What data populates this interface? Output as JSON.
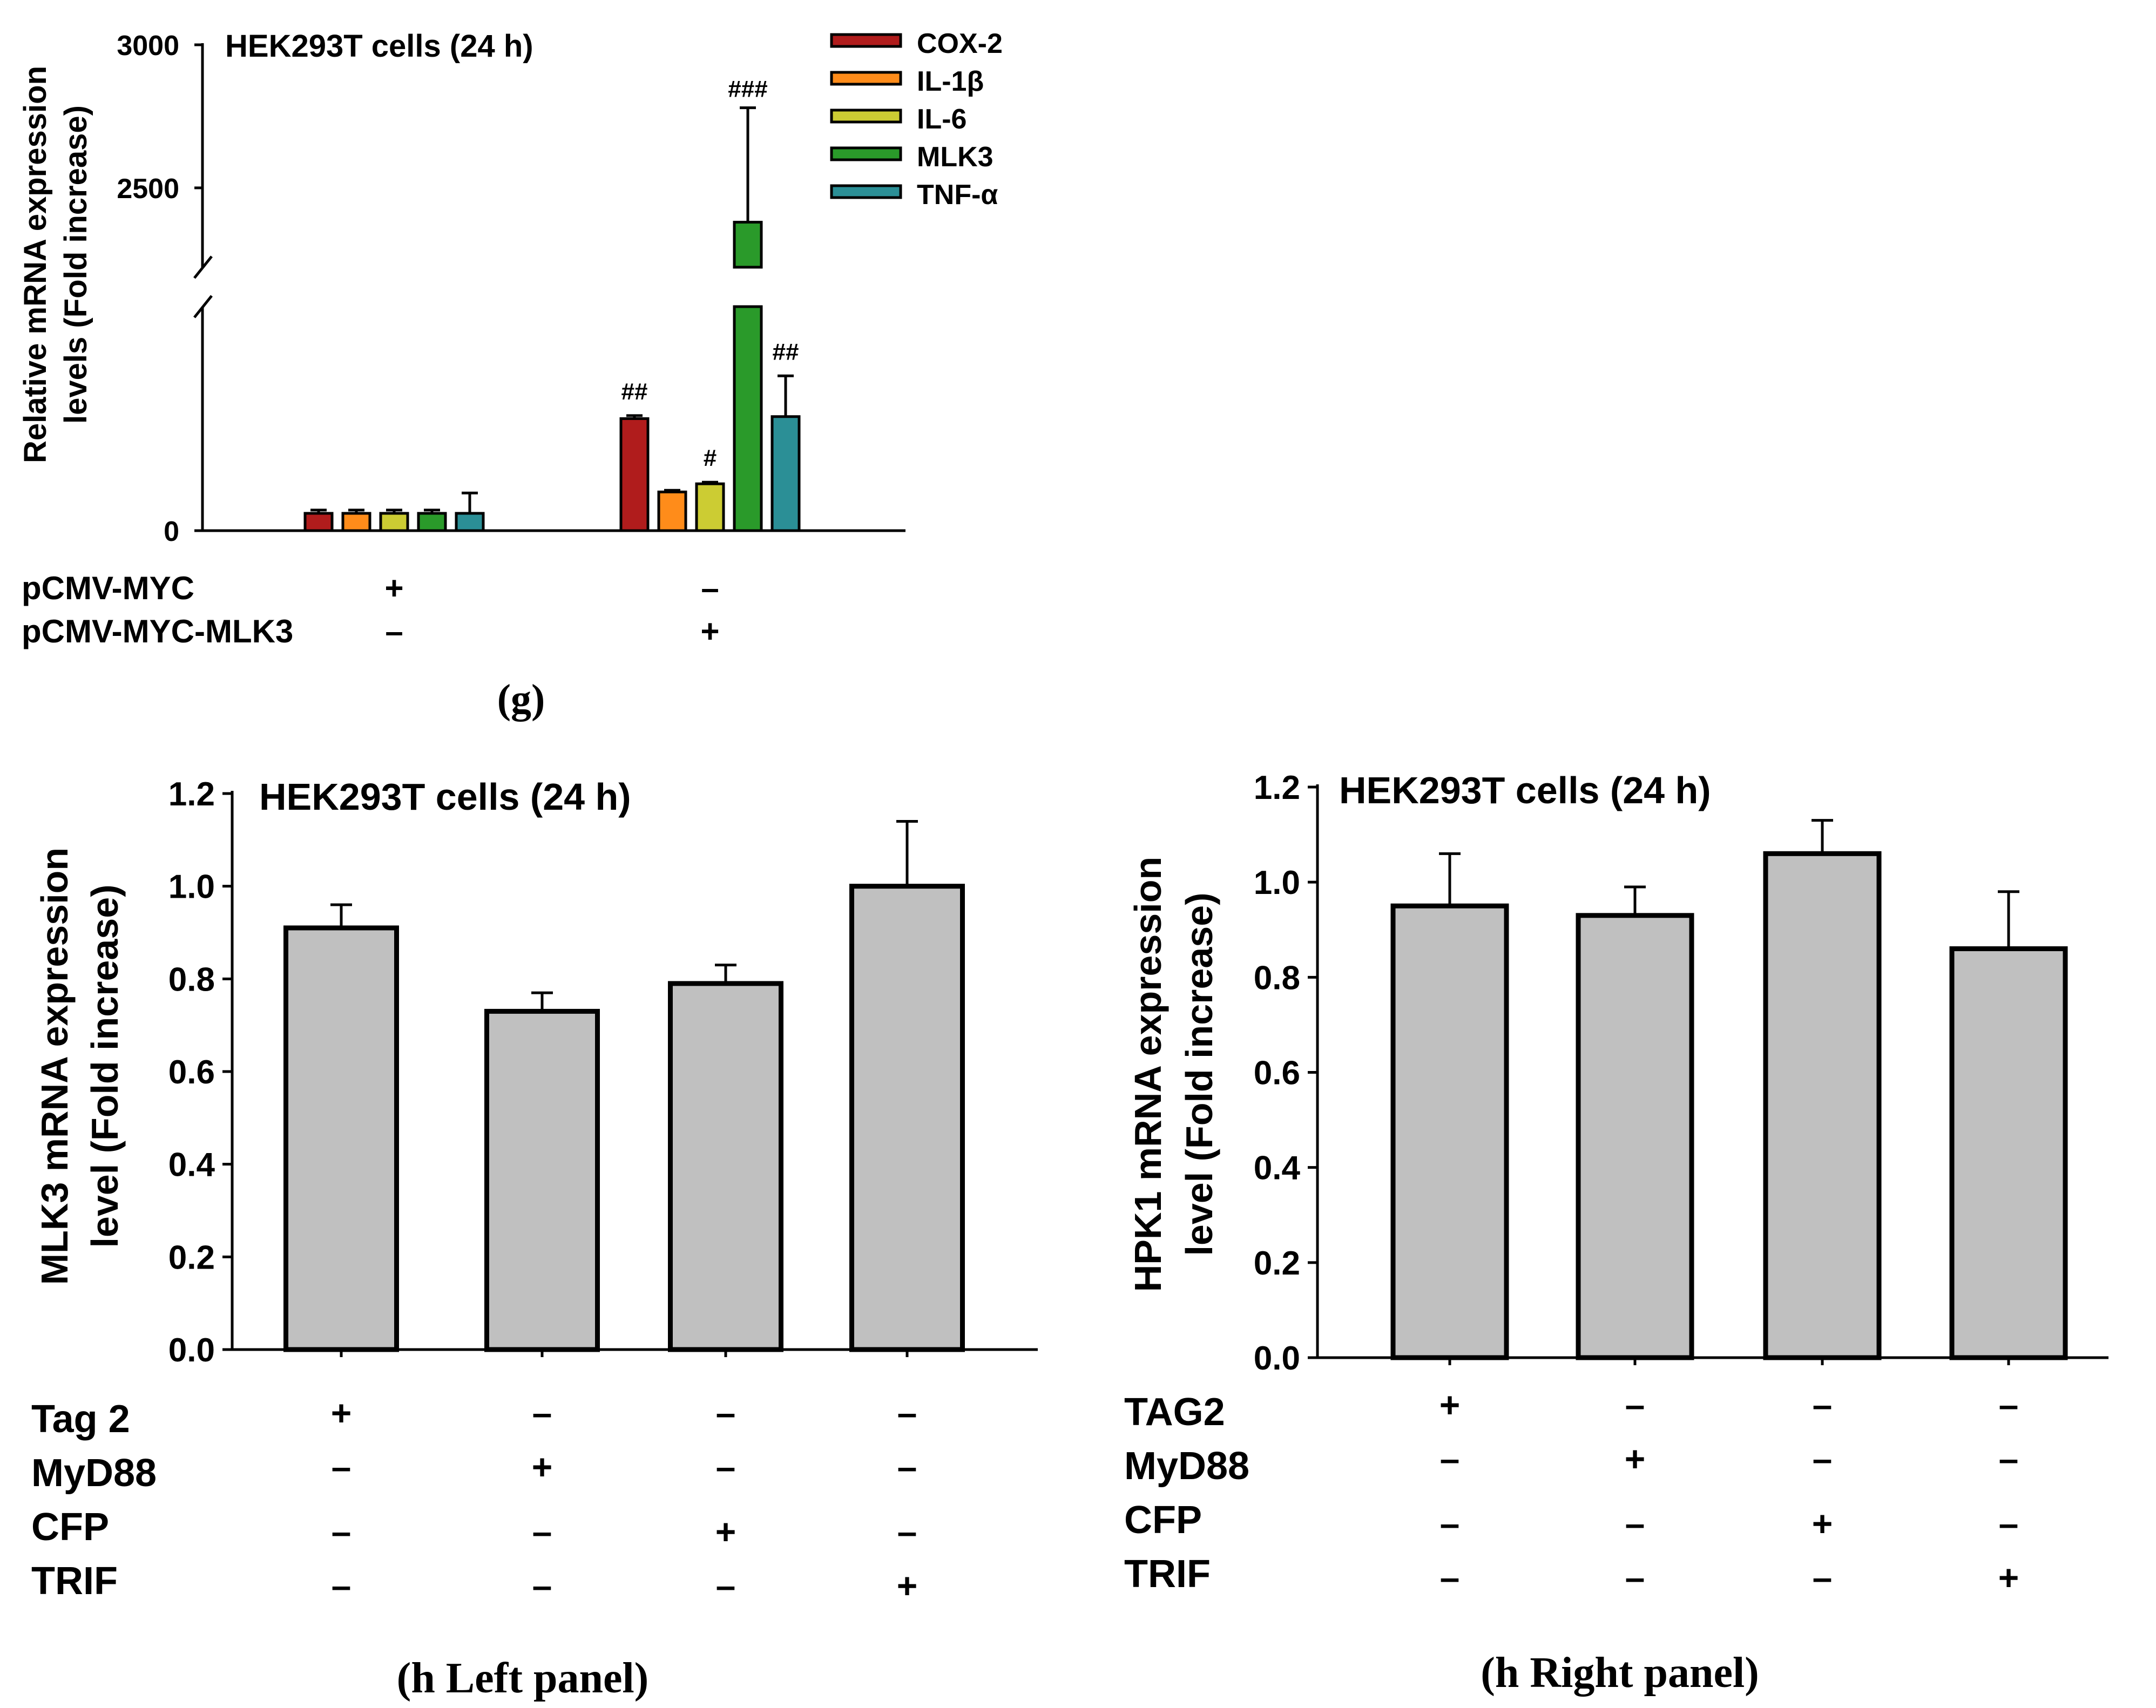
{
  "panel_g": {
    "caption": "(g)",
    "chart_data": {
      "type": "bar",
      "title": "HEK293T cells (24 h)",
      "ylabel_line1": "Relative mRNA expression",
      "ylabel_line2": "levels (Fold increase)",
      "axis_break": true,
      "yticks": [
        "0",
        "2500",
        "3000"
      ],
      "legend_position": "top-right",
      "colors": [
        "#b01c1c",
        "#ff8c1a",
        "#cccc33",
        "#2a9a2a",
        "#2b8f96"
      ],
      "series": [
        {
          "name": "COX-2",
          "values": [
            1,
            550
          ],
          "errors": [
            0,
            15
          ],
          "annotation": [
            "",
            "##"
          ]
        },
        {
          "name": "IL-1β",
          "values": [
            1,
            190
          ],
          "errors": [
            0,
            8
          ],
          "annotation": [
            "",
            ""
          ]
        },
        {
          "name": "IL-6",
          "values": [
            1,
            230
          ],
          "errors": [
            0,
            8
          ],
          "annotation": [
            "",
            "#"
          ]
        },
        {
          "name": "MLK3",
          "values": [
            1,
            2380
          ],
          "errors": [
            0,
            400
          ],
          "annotation": [
            "",
            "###"
          ]
        },
        {
          "name": "TNF-α",
          "values": [
            1,
            560
          ],
          "errors": [
            0,
            200
          ],
          "annotation": [
            "",
            "##"
          ]
        }
      ],
      "conditions": [
        {
          "label": "pCMV-MYC",
          "marks": [
            "+",
            "–"
          ]
        },
        {
          "label": "pCMV-MYC-MLK3",
          "marks": [
            "–",
            "+"
          ]
        }
      ]
    }
  },
  "panel_h_left": {
    "caption": "(h Left panel)",
    "chart_data": {
      "type": "bar",
      "title": "HEK293T cells (24 h)",
      "ylabel_line1": "MLK3 mRNA expression",
      "ylabel_line2": "level  (Fold increase)",
      "ylim": [
        0,
        1.2
      ],
      "yticks": [
        "0.0",
        "0.2",
        "0.4",
        "0.6",
        "0.8",
        "1.0",
        "1.2"
      ],
      "bar_color": "#c0c0c0",
      "values": [
        0.91,
        0.73,
        0.79,
        1.0
      ],
      "errors": [
        0.05,
        0.04,
        0.04,
        0.14
      ],
      "conditions": [
        {
          "label": "Tag 2",
          "marks": [
            "+",
            "–",
            "–",
            "–"
          ]
        },
        {
          "label": "MyD88",
          "marks": [
            "–",
            "+",
            "–",
            "–"
          ]
        },
        {
          "label": "CFP",
          "marks": [
            "–",
            "–",
            "+",
            "–"
          ]
        },
        {
          "label": "TRIF",
          "marks": [
            "–",
            "–",
            "–",
            "+"
          ]
        }
      ]
    }
  },
  "panel_h_right": {
    "caption": "(h Right panel)",
    "chart_data": {
      "type": "bar",
      "title": "HEK293T cells (24 h)",
      "ylabel_line1": "HPK1 mRNA expression",
      "ylabel_line2": "level  (Fold increase)",
      "ylim": [
        0,
        1.2
      ],
      "yticks": [
        "0.0",
        "0.2",
        "0.4",
        "0.6",
        "0.8",
        "1.0",
        "1.2"
      ],
      "bar_color": "#c0c0c0",
      "values": [
        0.95,
        0.93,
        1.06,
        0.86
      ],
      "errors": [
        0.11,
        0.06,
        0.07,
        0.12
      ],
      "conditions": [
        {
          "label": "TAG2",
          "marks": [
            "+",
            "–",
            "–",
            "–"
          ]
        },
        {
          "label": "MyD88",
          "marks": [
            "–",
            "+",
            "–",
            "–"
          ]
        },
        {
          "label": "CFP",
          "marks": [
            "–",
            "–",
            "+",
            "–"
          ]
        },
        {
          "label": "TRIF",
          "marks": [
            "–",
            "–",
            "–",
            "+"
          ]
        }
      ]
    }
  }
}
